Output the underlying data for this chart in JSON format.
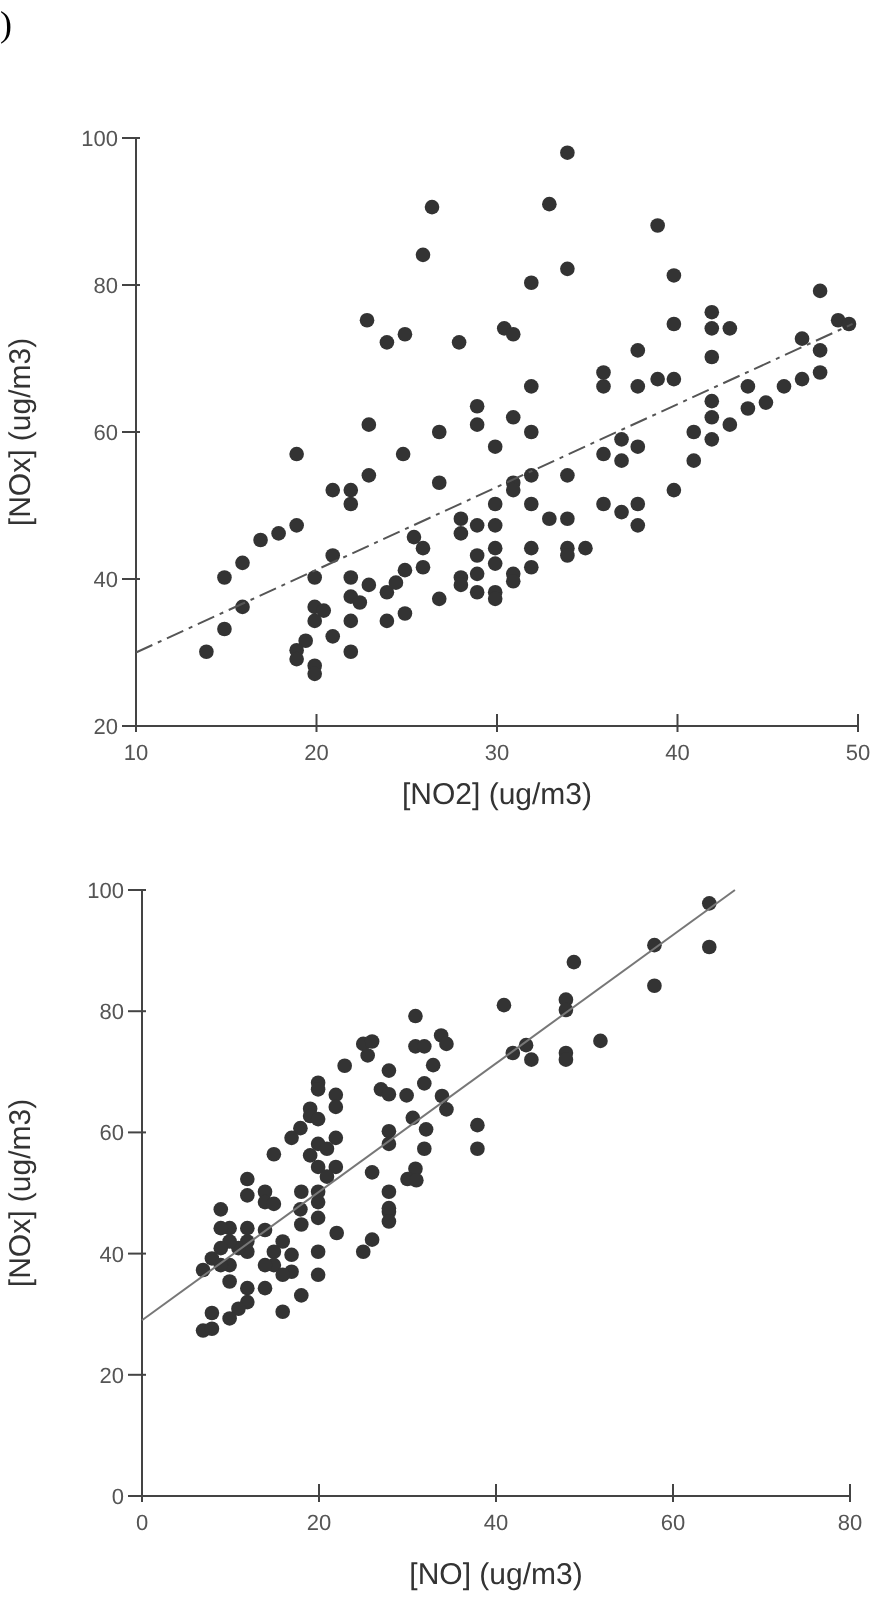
{
  "chart_data": [
    {
      "type": "scatter",
      "annotations": [
        ")"
      ],
      "xlabel": "[NO2] (ug/m3)",
      "ylabel": "[NOx] (ug/m3)",
      "xlim": [
        10,
        50
      ],
      "xticks": [
        10,
        20,
        30,
        40,
        50
      ],
      "ylim": [
        20,
        100
      ],
      "yticks": [
        20,
        40,
        60,
        80,
        100
      ],
      "series": [
        {
          "color": "#333333",
          "marker": "circle",
          "x": [
            22.8,
            23.9,
            24.9,
            25.9,
            26.4,
            27.9,
            30.4,
            30.9,
            31.9,
            31.9,
            32.9,
            33.9,
            33.9,
            35.9,
            35.9,
            37.8,
            37.8,
            38.9,
            38.9,
            39.8,
            39.8,
            39.8,
            41.9,
            41.9,
            41.9,
            42.9,
            43.9,
            45.9,
            46.9,
            46.9,
            47.9,
            47.9,
            47.9,
            48.9,
            49.5,
            28.9,
            28.9,
            30.9,
            22.9,
            26.8,
            31.9,
            40.9,
            41.9,
            41.9,
            42.9,
            43.9,
            44.9,
            40.9,
            41.9,
            29.9,
            18.9,
            24.8,
            35.9,
            36.9,
            36.9,
            37.8,
            22.9,
            33.9,
            31.9,
            26.8,
            30.9,
            30.9,
            20.9,
            21.9,
            21.9,
            29.9,
            31.9,
            35.9,
            37.8,
            39.8,
            36.9,
            37.8,
            28,
            32.9,
            33.9,
            28,
            28.9,
            29.9,
            18.9,
            17.9,
            16.9,
            25.4,
            25.9,
            29.9,
            31.9,
            33.9,
            34.9,
            33.9,
            28.9,
            20.9,
            15.9,
            14.9,
            25.9,
            24.9,
            28.9,
            29.9,
            30.9,
            31.9,
            28,
            28,
            28.9,
            29.9,
            29.9,
            30.9,
            19.9,
            21.9,
            21.9,
            22.4,
            22.9,
            23.9,
            24.4,
            26.8,
            15.9,
            19.9,
            20.4,
            24.9,
            23.9,
            19.9,
            21.9,
            14.9,
            19.4,
            20.9,
            18.9,
            18.9,
            13.9,
            21.9,
            19.9,
            19.9
          ],
          "values": [
            75.2,
            72.2,
            73.3,
            84.1,
            90.6,
            72.2,
            74.1,
            73.3,
            80.3,
            66.2,
            91,
            98,
            82.2,
            68.1,
            66.2,
            71.1,
            66.2,
            67.2,
            88.1,
            67.2,
            74.7,
            81.3,
            76.3,
            74.1,
            70.2,
            74.1,
            66.2,
            66.2,
            67.2,
            72.7,
            79.2,
            71.1,
            68.1,
            75.2,
            74.7,
            63.5,
            61,
            62,
            61,
            60,
            60,
            60,
            64.2,
            62,
            61,
            63.2,
            64,
            56.1,
            59,
            58,
            57,
            57,
            57,
            59,
            56.1,
            58,
            54.1,
            54.1,
            54.1,
            53.1,
            53.1,
            52.1,
            52.1,
            52.1,
            50.2,
            50.2,
            50.2,
            50.2,
            50.2,
            52.1,
            49.1,
            47.3,
            48.2,
            48.2,
            48.2,
            46.2,
            47.3,
            47.3,
            47.3,
            46.2,
            45.3,
            45.7,
            44.2,
            44.2,
            44.2,
            44.2,
            44.2,
            43.2,
            43.2,
            43.2,
            42.2,
            40.2,
            41.6,
            41.2,
            40.7,
            42.1,
            40.7,
            41.6,
            40.2,
            39.2,
            38.2,
            38.2,
            37.3,
            39.7,
            40.2,
            40.2,
            37.6,
            36.8,
            39.2,
            38.2,
            39.5,
            37.3,
            36.2,
            36.2,
            35.7,
            35.3,
            34.3,
            34.3,
            34.3,
            33.2,
            31.6,
            32.2,
            30.3,
            29.1,
            30.1,
            30.1,
            28.2,
            27.1
          ]
        },
        {
          "type": "line",
          "color": "#555555",
          "line_style": "dashed",
          "marker": "none",
          "x": [
            10,
            49.7
          ],
          "values": [
            30,
            74.7
          ]
        }
      ]
    },
    {
      "type": "scatter",
      "xlabel": "[NO] (ug/m3)",
      "ylabel": "[NOx] (ug/m3)",
      "xlim": [
        0,
        80
      ],
      "xticks": [
        0,
        20,
        40,
        60,
        80
      ],
      "ylim": [
        0,
        100
      ],
      "yticks": [
        0,
        20,
        40,
        60,
        80,
        100
      ],
      "series": [
        {
          "color": "#333333",
          "marker": "circle",
          "x": [
            64.1,
            64.1,
            57.9,
            57.9,
            48.8,
            47.9,
            47.9,
            47.9,
            47.9,
            51.8,
            40.9,
            41.9,
            43.4,
            44,
            30.9,
            30.9,
            31.9,
            32.9,
            31.9,
            33.8,
            34.4,
            33.9,
            34.4,
            37.9,
            37.9,
            22.9,
            25,
            26,
            25.5,
            27.9,
            27,
            27.9,
            29.9,
            30.6,
            32.1,
            27.9,
            27.9,
            31.9,
            30.9,
            30,
            31,
            26,
            27.9,
            27.9,
            19.9,
            19.9,
            21.9,
            21.9,
            19,
            19,
            19.9,
            17.9,
            16.9,
            21.9,
            19.9,
            20.9,
            19,
            14.9,
            19.9,
            21.9,
            20.9,
            18,
            19.9,
            19.9,
            11.9,
            11.9,
            13.9,
            13.9,
            14.9,
            8.9,
            17.9,
            19.9,
            22,
            27.9,
            27.9,
            25,
            26,
            18,
            19.9,
            19.9,
            18,
            15.9,
            15.9,
            14.9,
            14.9,
            16.9,
            16.9,
            15.9,
            13.9,
            13.9,
            13.9,
            11.9,
            11.9,
            11.9,
            10.9,
            9.9,
            8.9,
            9.9,
            8.9,
            9.9,
            9.9,
            7.9,
            6.9,
            8.9,
            11.9,
            11.9,
            10.9,
            9.9,
            7.9,
            6.9,
            7.9
          ],
          "values": [
            97.8,
            90.6,
            90.9,
            84.2,
            88.1,
            81.9,
            80.2,
            73.1,
            72,
            75.1,
            81,
            73.1,
            74.4,
            72,
            79.2,
            74.2,
            74.2,
            71.1,
            68.1,
            76,
            74.6,
            66,
            63.8,
            61.2,
            57.3,
            71,
            74.6,
            75,
            72.7,
            70.2,
            67.1,
            66.3,
            66.1,
            62.4,
            60.5,
            60.2,
            58.1,
            57.3,
            54,
            52.3,
            52.1,
            53.4,
            50.2,
            46.9,
            68.2,
            67.1,
            66.2,
            64.2,
            63.9,
            62.7,
            62.2,
            60.7,
            59.1,
            59.1,
            58.1,
            57.3,
            56.2,
            56.4,
            54.3,
            54.3,
            52.7,
            50.2,
            50.2,
            48.5,
            52.3,
            49.6,
            50.2,
            48.5,
            48.2,
            47.3,
            47.3,
            45.9,
            43.4,
            47.5,
            45.3,
            40.3,
            42.3,
            44.8,
            40.3,
            36.5,
            33.1,
            30.4,
            42,
            40.3,
            38.1,
            39.8,
            37,
            36.5,
            38.1,
            34.3,
            43.9,
            44.2,
            42,
            40.3,
            40.9,
            44.2,
            44.2,
            42,
            40.9,
            38.1,
            35.4,
            39.2,
            37.3,
            38.1,
            34.3,
            32,
            30.9,
            29.3,
            30.2,
            27.3,
            27.6
          ]
        },
        {
          "type": "line",
          "color": "#777777",
          "line_style": "solid",
          "marker": "none",
          "x": [
            0,
            67
          ],
          "values": [
            29,
            100
          ]
        }
      ]
    }
  ]
}
